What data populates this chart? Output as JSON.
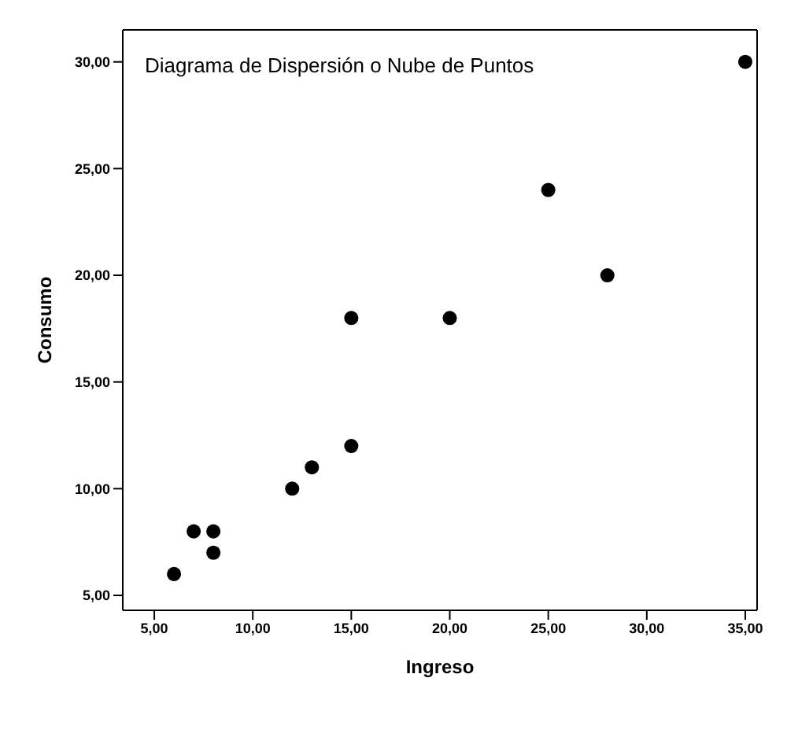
{
  "chart_data": {
    "type": "scatter",
    "title": "Diagrama de Dispersión o Nube de Puntos",
    "xlabel": "Ingreso",
    "ylabel": "Consumo",
    "x": [
      6,
      7,
      8,
      8,
      12,
      13,
      15,
      15,
      20,
      25,
      28,
      35
    ],
    "series": [
      {
        "color": "#000000",
        "values": [
          6,
          8,
          8,
          7,
          10,
          11,
          12,
          18,
          18,
          24,
          20,
          30
        ]
      }
    ],
    "xlim": [
      3.4,
      35.6
    ],
    "ylim": [
      4.3,
      31.5
    ],
    "xticks": [
      {
        "value": 5,
        "label": "5,00"
      },
      {
        "value": 10,
        "label": "10,00"
      },
      {
        "value": 15,
        "label": "15,00"
      },
      {
        "value": 20,
        "label": "20,00"
      },
      {
        "value": 25,
        "label": "25,00"
      },
      {
        "value": 30,
        "label": "30,00"
      },
      {
        "value": 35,
        "label": "35,00"
      }
    ],
    "yticks": [
      {
        "value": 5,
        "label": "5,00"
      },
      {
        "value": 10,
        "label": "10,00"
      },
      {
        "value": 15,
        "label": "15,00"
      },
      {
        "value": 20,
        "label": "20,00"
      },
      {
        "value": 25,
        "label": "25,00"
      },
      {
        "value": 30,
        "label": "30,00"
      }
    ],
    "marker": "circle"
  }
}
